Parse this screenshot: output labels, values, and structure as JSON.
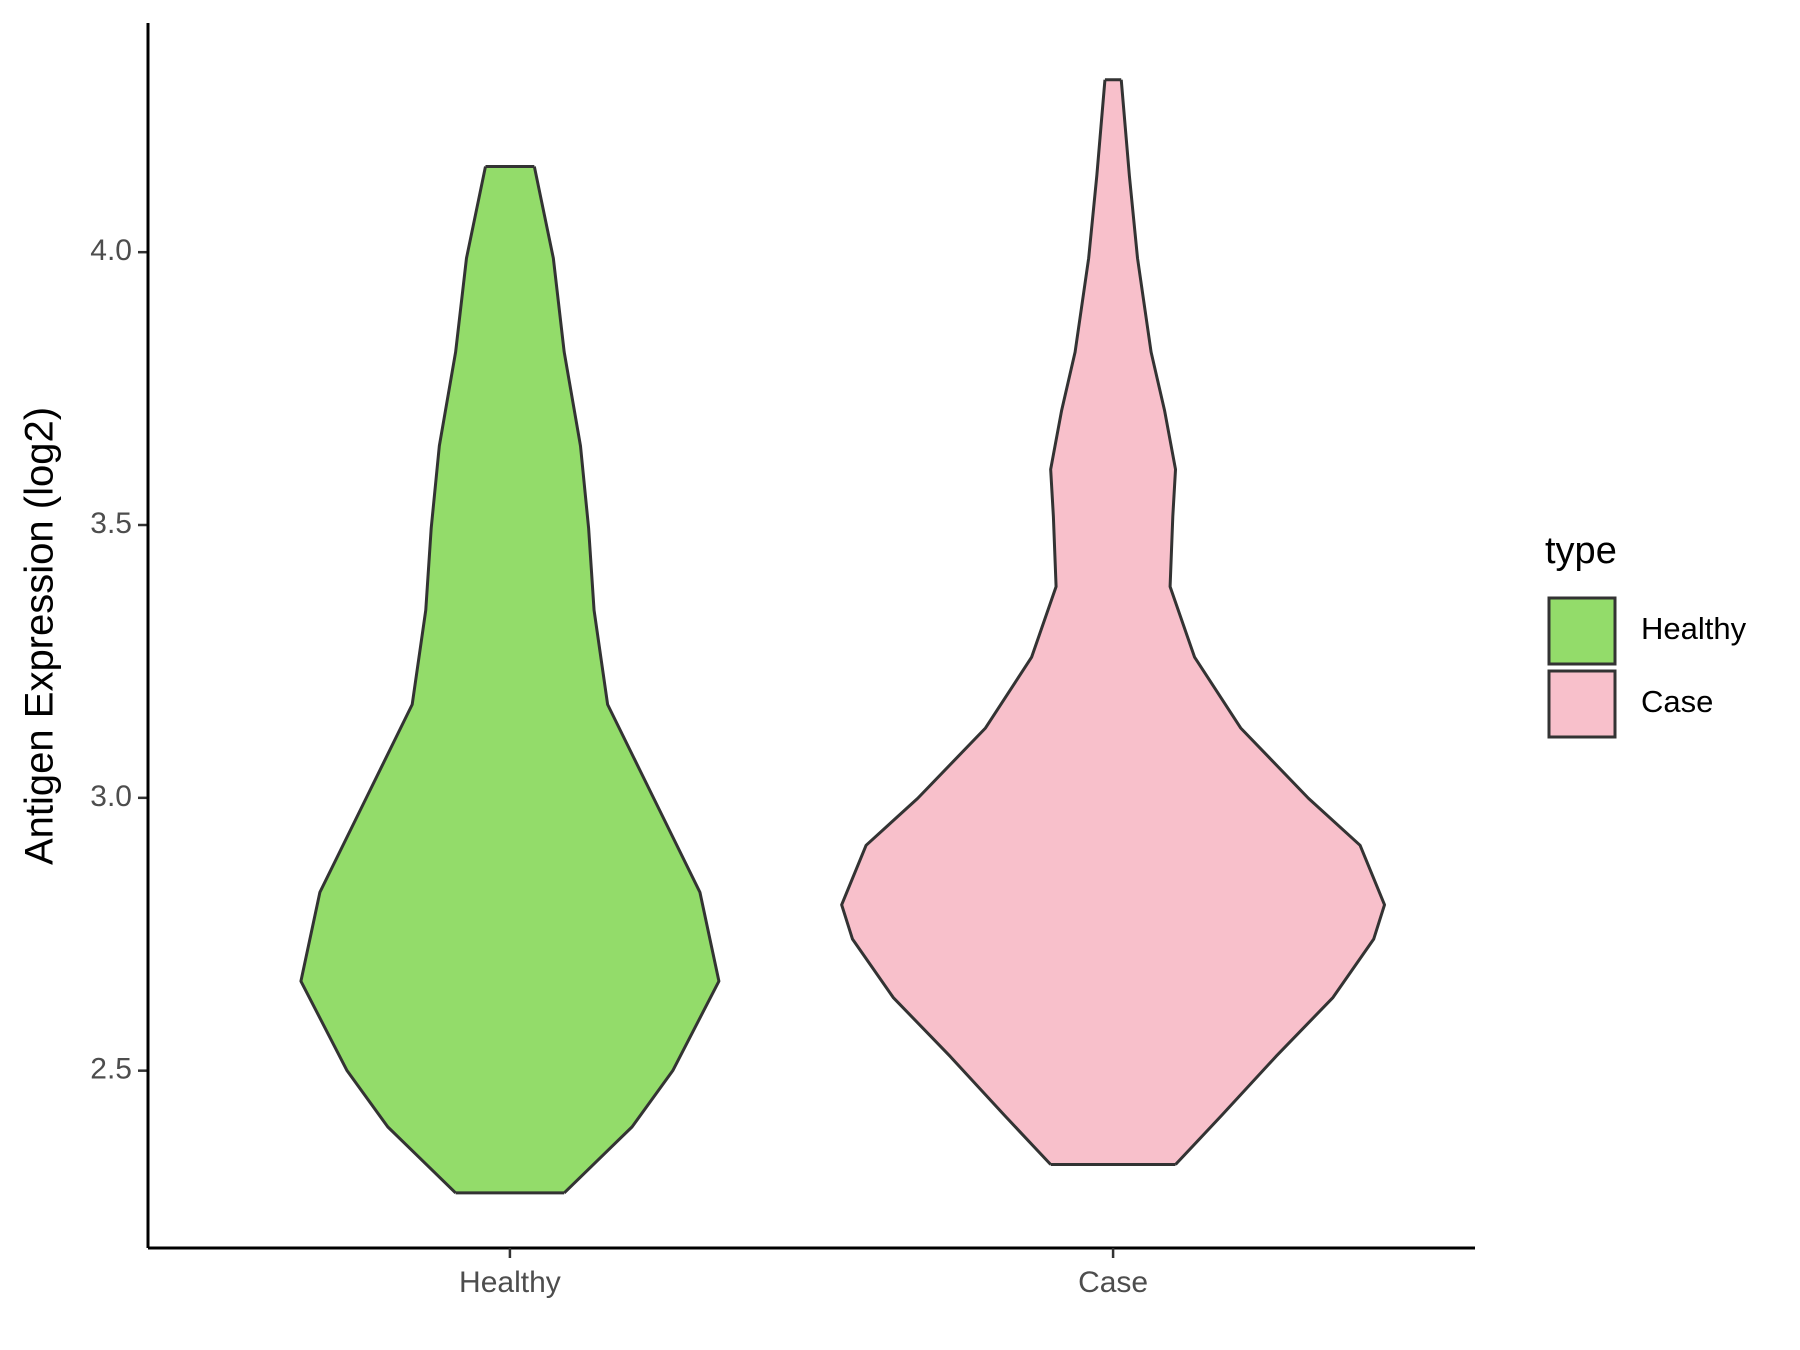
{
  "chart_data": {
    "type": "violin",
    "y_label": "Antigen Expression (log2)",
    "categories": [
      "Healthy",
      "Case"
    ],
    "legend_title": "type",
    "legend_position": "right",
    "ylim": [
      2.175,
      4.42
    ],
    "yticks": [
      2.5,
      {
        "value": 3.0,
        "label": "3.0"
      },
      3.5,
      {
        "value": 4.0,
        "label": "4.0"
      }
    ],
    "outline_color": "#333333",
    "series": [
      {
        "name": "Healthy",
        "color": "#93dc6a",
        "y": [
          2.276,
          2.397,
          2.5,
          2.664,
          2.827,
          2.999,
          3.171,
          3.344,
          3.494,
          3.645,
          3.817,
          3.989,
          4.157
        ],
        "density": [
          0.2,
          0.45,
          0.6,
          0.77,
          0.7,
          0.53,
          0.36,
          0.31,
          0.29,
          0.26,
          0.2,
          0.16,
          0.09
        ]
      },
      {
        "name": "Case",
        "color": "#f8c0cb",
        "y": [
          2.328,
          2.418,
          2.526,
          2.634,
          2.741,
          2.804,
          2.913,
          2.999,
          3.128,
          3.258,
          3.387,
          3.516,
          3.602,
          3.709,
          3.817,
          3.989,
          4.14,
          4.316
        ],
        "density": [
          0.23,
          0.4,
          0.6,
          0.81,
          0.96,
          1.0,
          0.91,
          0.72,
          0.47,
          0.3,
          0.21,
          0.22,
          0.23,
          0.19,
          0.14,
          0.09,
          0.06,
          0.03
        ]
      }
    ]
  }
}
